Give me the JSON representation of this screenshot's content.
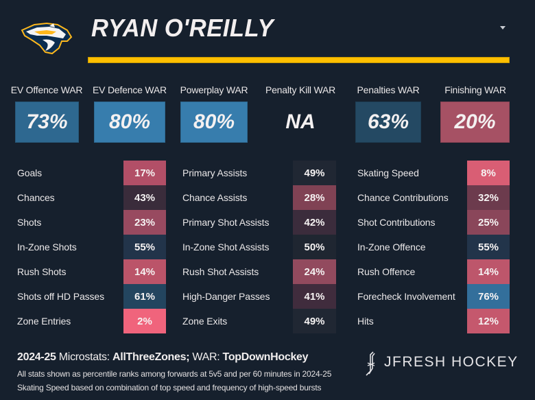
{
  "header": {
    "player_name": "RYAN O'REILLY",
    "team_logo": "nashville-predators-logo",
    "dropdown_icon": "caret-down-icon",
    "accent_color": "#ffbf00"
  },
  "war": [
    {
      "label": "EV Offence WAR",
      "value": "73%",
      "percentile": 73,
      "color": "#2e6890"
    },
    {
      "label": "EV Defence WAR",
      "value": "80%",
      "percentile": 80,
      "color": "#377dad"
    },
    {
      "label": "Powerplay WAR",
      "value": "80%",
      "percentile": 80,
      "color": "#377dad"
    },
    {
      "label": "Penalty Kill WAR",
      "value": "NA",
      "percentile": null,
      "color": "transparent"
    },
    {
      "label": "Penalties WAR",
      "value": "63%",
      "percentile": 63,
      "color": "#244963"
    },
    {
      "label": "Finishing WAR",
      "value": "20%",
      "percentile": 20,
      "color": "#a65164"
    }
  ],
  "columns": [
    {
      "rows": [
        {
          "label": "Goals",
          "value": "17%",
          "percentile": 17,
          "color": "#b24f67"
        },
        {
          "label": "Chances",
          "value": "43%",
          "percentile": 43,
          "color": "#3a2c3b"
        },
        {
          "label": "Shots",
          "value": "23%",
          "percentile": 23,
          "color": "#984a60"
        },
        {
          "label": "In-Zone Shots",
          "value": "55%",
          "percentile": 55,
          "color": "#22344a"
        },
        {
          "label": "Rush Shots",
          "value": "14%",
          "percentile": 14,
          "color": "#bb5469"
        },
        {
          "label": "Shots off HD Passes",
          "value": "61%",
          "percentile": 61,
          "color": "#23455f"
        },
        {
          "label": "Zone Entries",
          "value": "2%",
          "percentile": 2,
          "color": "#f0647c"
        }
      ]
    },
    {
      "rows": [
        {
          "label": "Primary Assists",
          "value": "49%",
          "percentile": 49,
          "color": "#202733"
        },
        {
          "label": "Chance Assists",
          "value": "28%",
          "percentile": 28,
          "color": "#804254"
        },
        {
          "label": "Primary Shot Assists",
          "value": "42%",
          "percentile": 42,
          "color": "#3b2c3c"
        },
        {
          "label": "In-Zone Shot Assists",
          "value": "50%",
          "percentile": 50,
          "color": "#1f2631"
        },
        {
          "label": "Rush Shot Assists",
          "value": "24%",
          "percentile": 24,
          "color": "#924a5e"
        },
        {
          "label": "High-Danger Passes",
          "value": "41%",
          "percentile": 41,
          "color": "#402c3d"
        },
        {
          "label": "Zone Exits",
          "value": "49%",
          "percentile": 49,
          "color": "#202733"
        }
      ]
    },
    {
      "rows": [
        {
          "label": "Skating Speed",
          "value": "8%",
          "percentile": 8,
          "color": "#d95e74"
        },
        {
          "label": "Chance Contributions",
          "value": "32%",
          "percentile": 32,
          "color": "#6c3b4d"
        },
        {
          "label": "Shot Contributions",
          "value": "25%",
          "percentile": 25,
          "color": "#8a465a"
        },
        {
          "label": "In-Zone Offence",
          "value": "55%",
          "percentile": 55,
          "color": "#22344a"
        },
        {
          "label": "Rush Offence",
          "value": "14%",
          "percentile": 14,
          "color": "#bd566b"
        },
        {
          "label": "Forecheck Involvement",
          "value": "76%",
          "percentile": 76,
          "color": "#336f9b"
        },
        {
          "label": "Hits",
          "value": "12%",
          "percentile": 12,
          "color": "#c5586d"
        }
      ]
    }
  ],
  "footer": {
    "season": "2024-25",
    "microstats_label": "Microstats:",
    "microstats_source": "AllThreeZones;",
    "war_label": "WAR:",
    "war_source": "TopDownHockey",
    "note1": "All stats shown as percentile ranks among forwards at 5v5 and per 60 minutes in 2024-25",
    "note2": "Skating Speed based on combination of top speed and frequency of high-speed bursts",
    "brand": "JFRESH HOCKEY",
    "brand_icon": "hockey-sticks-icon"
  }
}
